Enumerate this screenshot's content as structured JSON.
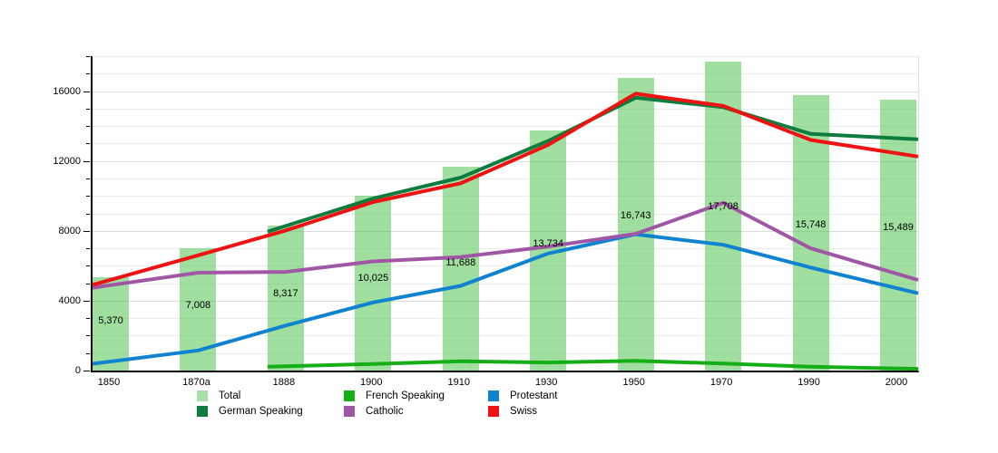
{
  "chart_data": {
    "type": "bar",
    "subtype": "bar+line combo",
    "title": "",
    "xlabel": "",
    "ylabel": "",
    "categories": [
      "1850",
      "1870a",
      "1888",
      "1900",
      "1910",
      "1930",
      "1950",
      "1970",
      "1990",
      "2000"
    ],
    "bar_series": {
      "name": "Total",
      "color": "#a8dfa8",
      "values": [
        5370,
        7008,
        8317,
        10025,
        11688,
        13734,
        16743,
        17708,
        15748,
        15489
      ],
      "value_labels": [
        "5,370",
        "7,008",
        "8,317",
        "10,025",
        "11,688",
        "13,734",
        "16,743",
        "17,708",
        "15,748",
        "15,489"
      ]
    },
    "line_series": [
      {
        "name": "German Speaking",
        "color": "#0e7c3e",
        "values": [
          null,
          null,
          8280,
          9850,
          11050,
          13150,
          15620,
          15080,
          13550,
          13300
        ]
      },
      {
        "name": "French Speaking",
        "color": "#16ae16",
        "values": [
          null,
          null,
          250,
          380,
          530,
          460,
          560,
          400,
          220,
          120
        ]
      },
      {
        "name": "Protestant",
        "color": "#0f82d0",
        "values": [
          520,
          1150,
          2580,
          3900,
          4850,
          6700,
          7800,
          7200,
          5900,
          4700
        ]
      },
      {
        "name": "Catholic",
        "color": "#9f57a5",
        "values": [
          4890,
          5600,
          5650,
          6250,
          6500,
          7100,
          7830,
          9600,
          7000,
          5520
        ]
      },
      {
        "name": "Swiss",
        "color": "#ee1212",
        "values": [
          5200,
          6600,
          8020,
          9650,
          10720,
          12920,
          15850,
          15150,
          13200,
          12430
        ]
      }
    ],
    "legend": [
      {
        "label": "Total",
        "color": "#a8dfa8"
      },
      {
        "label": "German Speaking",
        "color": "#0e7c3e"
      },
      {
        "label": "French Speaking",
        "color": "#16ae16"
      },
      {
        "label": "Catholic",
        "color": "#9f57a5"
      },
      {
        "label": "Protestant",
        "color": "#0f82d0"
      },
      {
        "label": "Swiss",
        "color": "#ee1212"
      }
    ],
    "legend_position": "bottom",
    "ylim": [
      0,
      18000
    ],
    "yticks": [
      0,
      4000,
      8000,
      12000,
      16000
    ],
    "ytick_labels": [
      "0",
      "4000",
      "8000",
      "12000",
      "16000"
    ],
    "grid": {
      "horizontal": true,
      "minor_step": 1000,
      "major_step": 4000,
      "vertical": false
    }
  }
}
